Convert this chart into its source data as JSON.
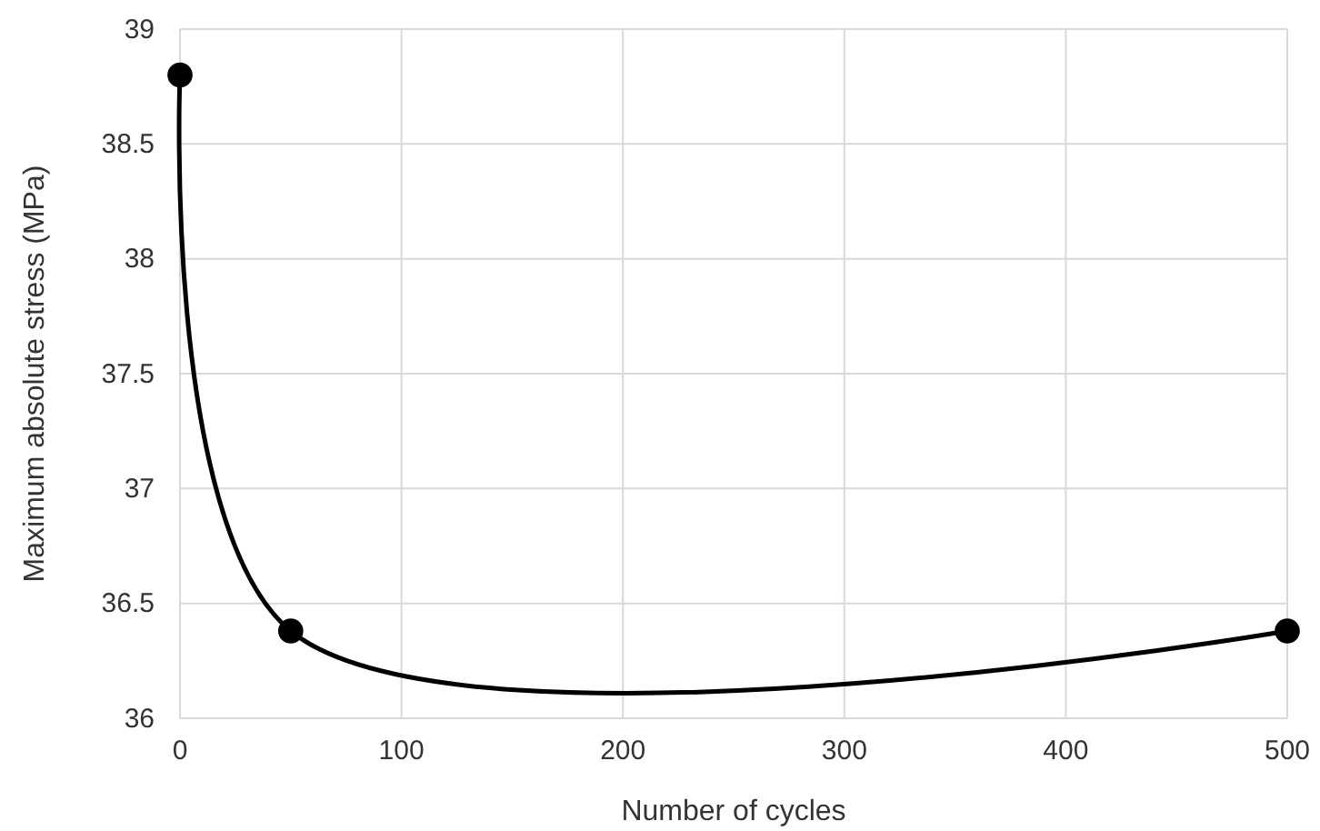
{
  "chart_data": {
    "type": "line",
    "xlabel": "Number of cycles",
    "ylabel": "Maximum absolute stress (MPa)",
    "x": [
      0,
      50,
      500
    ],
    "series": [
      {
        "color": "#000000",
        "values": [
          38.8,
          36.38,
          36.38
        ]
      }
    ],
    "xlim": [
      0,
      500
    ],
    "xticks": [
      0,
      100,
      200,
      300,
      400,
      500
    ],
    "ylim": [
      36,
      39
    ],
    "yticks": [
      36,
      36.5,
      37,
      37.5,
      38,
      38.5,
      39
    ],
    "grid": true,
    "marker": "circle",
    "line_style": "solid"
  }
}
